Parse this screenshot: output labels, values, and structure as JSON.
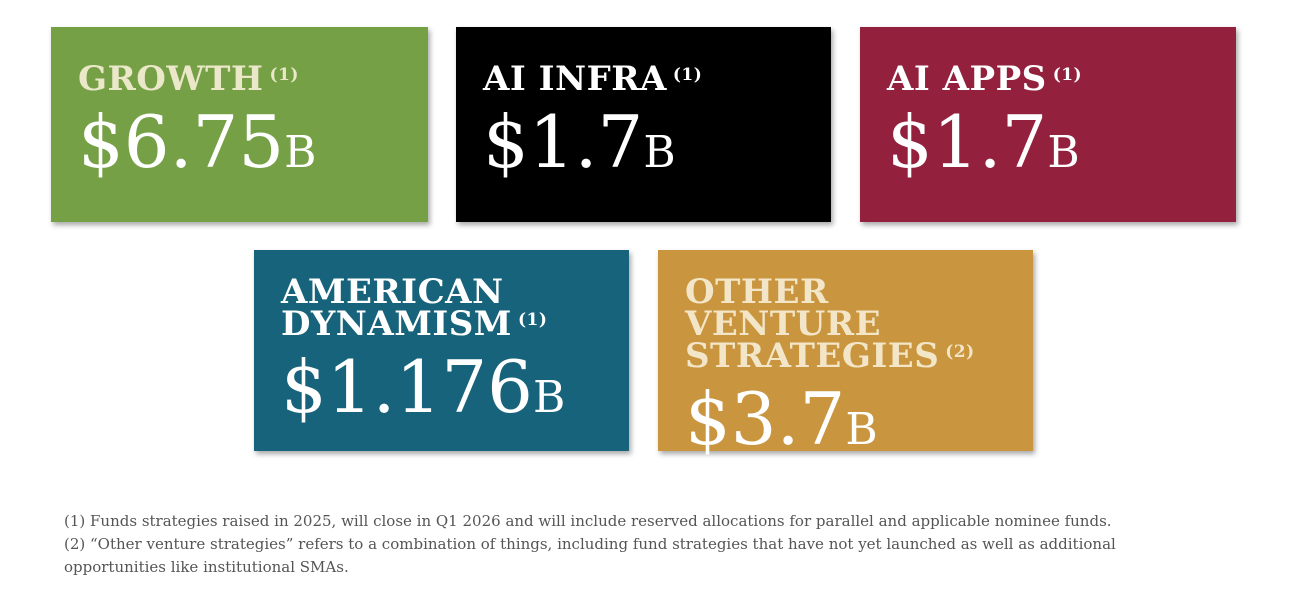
{
  "cards": [
    {
      "title": "GROWTH",
      "note": "(1)",
      "amount": "$6.75",
      "unit": "B"
    },
    {
      "title": "AI INFRA",
      "note": "(1)",
      "amount": "$1.7",
      "unit": "B"
    },
    {
      "title": "AI APPS",
      "note": "(1)",
      "amount": "$1.7",
      "unit": "B"
    },
    {
      "title": "AMERICAN DYNAMISM",
      "note": "(1)",
      "amount": "$1.176",
      "unit": "B"
    },
    {
      "title": "OTHER VENTURE STRATEGIES",
      "note": "(2)",
      "amount": "$3.7",
      "unit": "B"
    }
  ],
  "footnotes": [
    "(1) Funds strategies raised in 2025, will close in Q1 2026 and will include reserved allocations for parallel and applicable nominee funds.",
    "(2) “Other venture strategies” refers to a combination of things, including fund strategies that have not yet launched as well as additional opportunities like institutional SMAs."
  ]
}
